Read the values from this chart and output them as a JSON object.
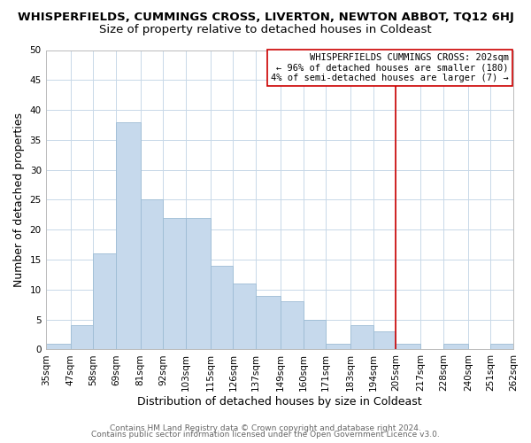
{
  "title": "WHISPERFIELDS, CUMMINGS CROSS, LIVERTON, NEWTON ABBOT, TQ12 6HJ",
  "subtitle": "Size of property relative to detached houses in Coldeast",
  "xlabel": "Distribution of detached houses by size in Coldeast",
  "ylabel": "Number of detached properties",
  "bar_color": "#c6d9ec",
  "bar_edge_color": "#9dbcd4",
  "grid_color": "#c8d8e8",
  "bins": [
    35,
    47,
    58,
    69,
    81,
    92,
    103,
    115,
    126,
    137,
    149,
    160,
    171,
    183,
    194,
    205,
    217,
    228,
    240,
    251,
    262
  ],
  "bin_labels": [
    "35sqm",
    "47sqm",
    "58sqm",
    "69sqm",
    "81sqm",
    "92sqm",
    "103sqm",
    "115sqm",
    "126sqm",
    "137sqm",
    "149sqm",
    "160sqm",
    "171sqm",
    "183sqm",
    "194sqm",
    "205sqm",
    "217sqm",
    "228sqm",
    "240sqm",
    "251sqm",
    "262sqm"
  ],
  "counts": [
    1,
    4,
    16,
    38,
    25,
    22,
    22,
    14,
    11,
    9,
    8,
    5,
    1,
    4,
    3,
    1,
    0,
    1,
    0,
    1
  ],
  "vline_x": 205,
  "vline_color": "#cc0000",
  "annotation_line1": "WHISPERFIELDS CUMMINGS CROSS: 202sqm",
  "annotation_line2": "← 96% of detached houses are smaller (180)",
  "annotation_line3": "4% of semi-detached houses are larger (7) →",
  "ylim": [
    0,
    50
  ],
  "yticks": [
    0,
    5,
    10,
    15,
    20,
    25,
    30,
    35,
    40,
    45,
    50
  ],
  "footer1": "Contains HM Land Registry data © Crown copyright and database right 2024.",
  "footer2": "Contains public sector information licensed under the Open Government Licence v3.0.",
  "background_color": "#ffffff",
  "title_fontsize": 9.5,
  "subtitle_fontsize": 9.5,
  "axis_label_fontsize": 9,
  "tick_fontsize": 7.5,
  "annotation_fontsize": 7.5,
  "footer_fontsize": 6.5
}
